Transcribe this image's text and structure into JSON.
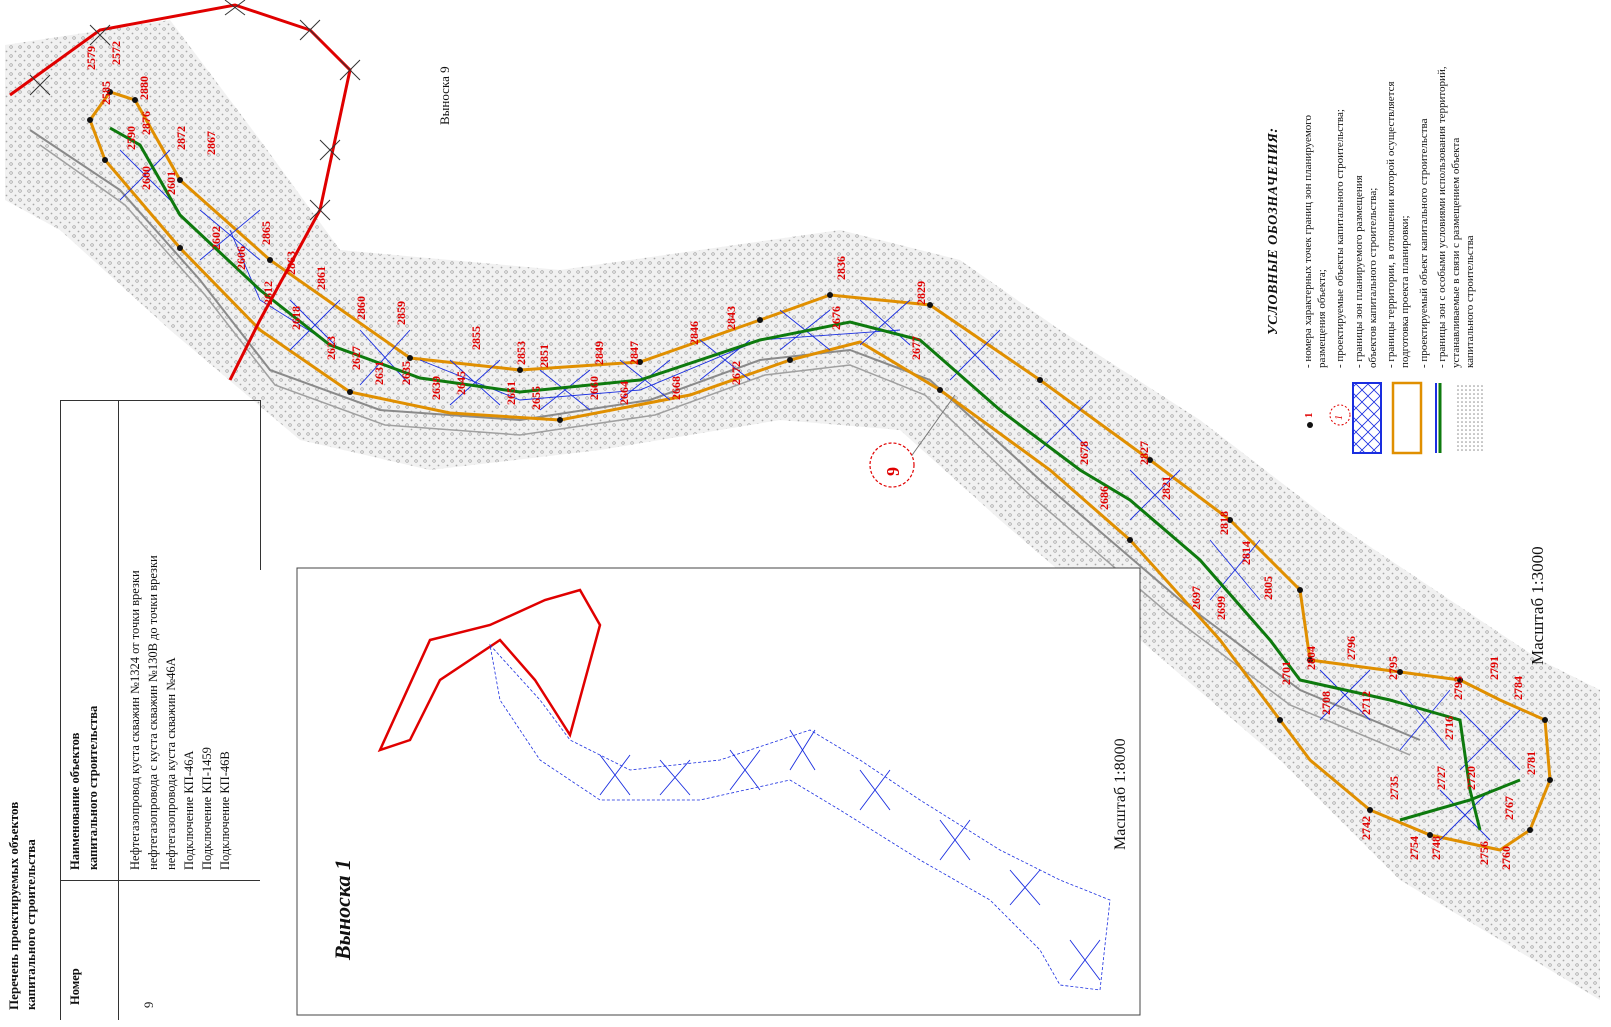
{
  "table": {
    "title_line1": "Перечень проектируемых объектов",
    "title_line2": "капитального строительства",
    "col_number": "Номер",
    "col_name_line1": "Наименование объектов",
    "col_name_line2": "капитального строительства",
    "row_number": "9",
    "row_lines": [
      "Нефтегазопровод куста скважин №1324 от точки врезки",
      "нефтегазопровода с куста скважин №130В до точки врезки",
      "нефтегазопровода куста скважин №46А",
      "Подключение КП-46А",
      "Подключение КП-1459",
      "Подключение КП-46В"
    ]
  },
  "callout": {
    "title": "Выноска 1",
    "scale": "Масштаб 1:8000"
  },
  "map": {
    "vynoska_label": "Выноска 9",
    "object_number": "9",
    "scale": "Масштаб 1:3000",
    "point_labels": [
      "2579",
      "2572",
      "2585",
      "2880",
      "2876",
      "2590",
      "2872",
      "2867",
      "2600",
      "2601",
      "2602",
      "2606",
      "2865",
      "2612",
      "2863",
      "2618",
      "2861",
      "2623",
      "2860",
      "2627",
      "2631",
      "2859",
      "2635",
      "2639",
      "2645",
      "2855",
      "2651",
      "2853",
      "2655",
      "2851",
      "2660",
      "2849",
      "2664",
      "2847",
      "2668",
      "2846",
      "2672",
      "2843",
      "2676",
      "2836",
      "2677",
      "2829",
      "2678",
      "2827",
      "2686",
      "2821",
      "2697",
      "2818",
      "2699",
      "2814",
      "2805",
      "2701",
      "2804",
      "2708",
      "2796",
      "2712",
      "2795",
      "2716",
      "2793",
      "2720",
      "2727",
      "2791",
      "2784",
      "2735",
      "2742",
      "2754",
      "2748",
      "2756",
      "2760",
      "2767",
      "2781"
    ]
  },
  "legend": {
    "title": "УСЛОВНЫЕ ОБОЗНАЧЕНИЯ:",
    "lines": [
      "- номера характерных точек границ зон планируемого",
      "размещения объекта;",
      "- проектируемые объекты капитального строительства;",
      "- границы зон планируемого размещения",
      "объектов капитального строительства;",
      "- границы территории, в отношении которой осуществляется",
      "подготовка проекта планировки;",
      "- проектируемый объект капитального строительства",
      "- границы зон с особыми условиями использования территорий,",
      "устанавливаемые в связи с размещением объекта",
      "капитального строительства"
    ],
    "symbol_point_number": "1",
    "symbol_object_number": "1"
  },
  "colors": {
    "boundary": "#e08f00",
    "hatch": "#1a2ee0",
    "pipeline": "#0e7a0e",
    "labels": "#e00000",
    "red_line": "#e00000",
    "terrain": "#c8c8c8"
  }
}
